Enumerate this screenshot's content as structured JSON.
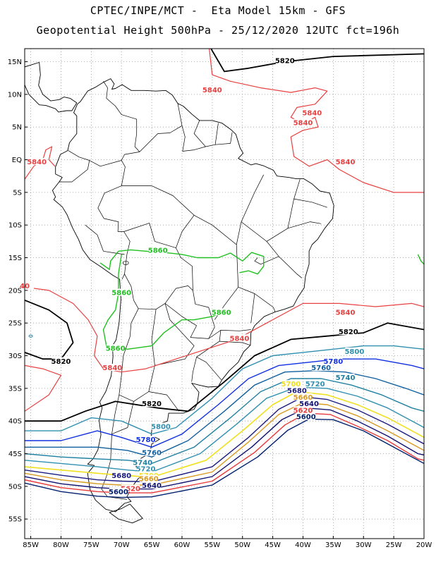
{
  "title_line1": "CPTEC/INPE/MCT -  Eta Model 15km - GFS",
  "title_line2": "Geopotential Height 500hPa - 25/12/2020 12UTC fct=196h",
  "axes": {
    "lon_ticks": [
      "85W",
      "80W",
      "75W",
      "70W",
      "65W",
      "60W",
      "55W",
      "50W",
      "45W",
      "40W",
      "35W",
      "30W",
      "25W",
      "20W"
    ],
    "lat_ticks": [
      "15N",
      "10N",
      "5N",
      "EQ",
      "5S",
      "10S",
      "15S",
      "20S",
      "25S",
      "30S",
      "35S",
      "40S",
      "45S",
      "50S",
      "55S"
    ],
    "lon_range": [
      -86,
      -20
    ],
    "lat_range": [
      17,
      -58
    ]
  },
  "colors": {
    "c5600": "#00206e",
    "c5620": "#e83a3a",
    "c5640": "#101070",
    "c5660": "#d89a20",
    "c5680": "#1a1a80",
    "c5700": "#f0e020",
    "c5720": "#3090b0",
    "c5740": "#2080a0",
    "c5760": "#1060a0",
    "c5780": "#1030e0",
    "c5800": "#3090b0",
    "c5820": "#000000",
    "c5840": "#e84040",
    "c5860": "#20c020",
    "grid": "#9a9a9a",
    "coast": "#000000"
  },
  "contour_labels": [
    {
      "id": "5820-top",
      "text": "5820",
      "lon": -43,
      "lat": 15,
      "color": "c5820"
    },
    {
      "id": "5840-atl1",
      "text": "5840",
      "lon": -55,
      "lat": 10.5,
      "color": "c5840"
    },
    {
      "id": "5840-atl2",
      "text": "5840",
      "lon": -38.5,
      "lat": 7,
      "color": "c5840"
    },
    {
      "id": "5840-atl3",
      "text": "5840",
      "lon": -40,
      "lat": 5.5,
      "color": "c5840"
    },
    {
      "id": "5840-eq-w",
      "text": "5840",
      "lon": -84,
      "lat": -0.5,
      "color": "c5840"
    },
    {
      "id": "5840-eq-e",
      "text": "5840",
      "lon": -33,
      "lat": -0.5,
      "color": "c5840"
    },
    {
      "id": "5860-1",
      "text": "5860",
      "lon": -64,
      "lat": -14,
      "color": "c5860"
    },
    {
      "id": "5860-2",
      "text": "5860",
      "lon": -70,
      "lat": -20.5,
      "color": "c5860"
    },
    {
      "id": "5860-3",
      "text": "5860",
      "lon": -53.5,
      "lat": -23.5,
      "color": "c5860"
    },
    {
      "id": "5860-4",
      "text": "5860",
      "lon": -71,
      "lat": -29,
      "color": "c5860"
    },
    {
      "id": "5840-mid",
      "text": "5840",
      "lon": -33,
      "lat": -23.5,
      "color": "c5840"
    },
    {
      "id": "5840-arg",
      "text": "5840",
      "lon": -50.5,
      "lat": -27.5,
      "color": "c5840"
    },
    {
      "id": "5840-sw",
      "text": "5840",
      "lon": -71.5,
      "lat": -32,
      "color": "c5840"
    },
    {
      "id": "5840-far-w",
      "text": "40",
      "lon": -86,
      "lat": -19.5,
      "color": "c5840"
    },
    {
      "id": "5820-e",
      "text": "5820",
      "lon": -32.5,
      "lat": -26.5,
      "color": "c5820"
    },
    {
      "id": "5820-w",
      "text": "5820",
      "lon": -80,
      "lat": -31,
      "color": "c5820"
    },
    {
      "id": "5820-s",
      "text": "5820",
      "lon": -65,
      "lat": -37.5,
      "color": "c5820"
    },
    {
      "id": "5800-e",
      "text": "5800",
      "lon": -31.5,
      "lat": -29.5,
      "color": "c5800"
    },
    {
      "id": "5780-e",
      "text": "5780",
      "lon": -35,
      "lat": -31,
      "color": "c5780"
    },
    {
      "id": "5760-e",
      "text": "5760",
      "lon": -37,
      "lat": -32,
      "color": "c5760"
    },
    {
      "id": "5740-e",
      "text": "5740",
      "lon": -33,
      "lat": -33.5,
      "color": "c5740"
    },
    {
      "id": "5720-e",
      "text": "5720",
      "lon": -38,
      "lat": -34.5,
      "color": "c5720"
    },
    {
      "id": "5700-e",
      "text": "5700",
      "lon": -42,
      "lat": -34.5,
      "color": "c5700"
    },
    {
      "id": "5680-e",
      "text": "5680",
      "lon": -41,
      "lat": -35.5,
      "color": "c5680"
    },
    {
      "id": "5660-e",
      "text": "5660",
      "lon": -40,
      "lat": -36.5,
      "color": "c5660"
    },
    {
      "id": "5640-e",
      "text": "5640",
      "lon": -39,
      "lat": -37.5,
      "color": "c5640"
    },
    {
      "id": "5620-e",
      "text": "5620",
      "lon": -40,
      "lat": -38.5,
      "color": "c5620"
    },
    {
      "id": "5600-e",
      "text": "5600",
      "lon": -39.5,
      "lat": -39.5,
      "color": "c5600"
    },
    {
      "id": "5800-w",
      "text": "5800",
      "lon": -63.5,
      "lat": -41,
      "color": "c5800"
    },
    {
      "id": "5780-w",
      "text": "5780",
      "lon": -66,
      "lat": -43,
      "color": "c5780"
    },
    {
      "id": "5760-w",
      "text": "5760",
      "lon": -65,
      "lat": -45,
      "color": "c5760"
    },
    {
      "id": "5740-w",
      "text": "5740",
      "lon": -66.5,
      "lat": -46.5,
      "color": "c5740"
    },
    {
      "id": "5720-w",
      "text": "5720",
      "lon": -66,
      "lat": -47.5,
      "color": "c5720"
    },
    {
      "id": "5700-w",
      "text": "5700",
      "lon": -65.5,
      "lat": -48.5,
      "color": "c5700"
    },
    {
      "id": "5680-w",
      "text": "5680",
      "lon": -70,
      "lat": -48.5,
      "color": "c5680"
    },
    {
      "id": "5660-w",
      "text": "5660",
      "lon": -65.5,
      "lat": -49,
      "color": "c5660"
    },
    {
      "id": "5640-w",
      "text": "5640",
      "lon": -65,
      "lat": -50,
      "color": "c5640"
    },
    {
      "id": "5620-w",
      "text": "5620",
      "lon": -68.5,
      "lat": -50.5,
      "color": "c5620"
    },
    {
      "id": "5600-w",
      "text": "5600",
      "lon": -70.5,
      "lat": -51,
      "color": "c5600"
    }
  ]
}
